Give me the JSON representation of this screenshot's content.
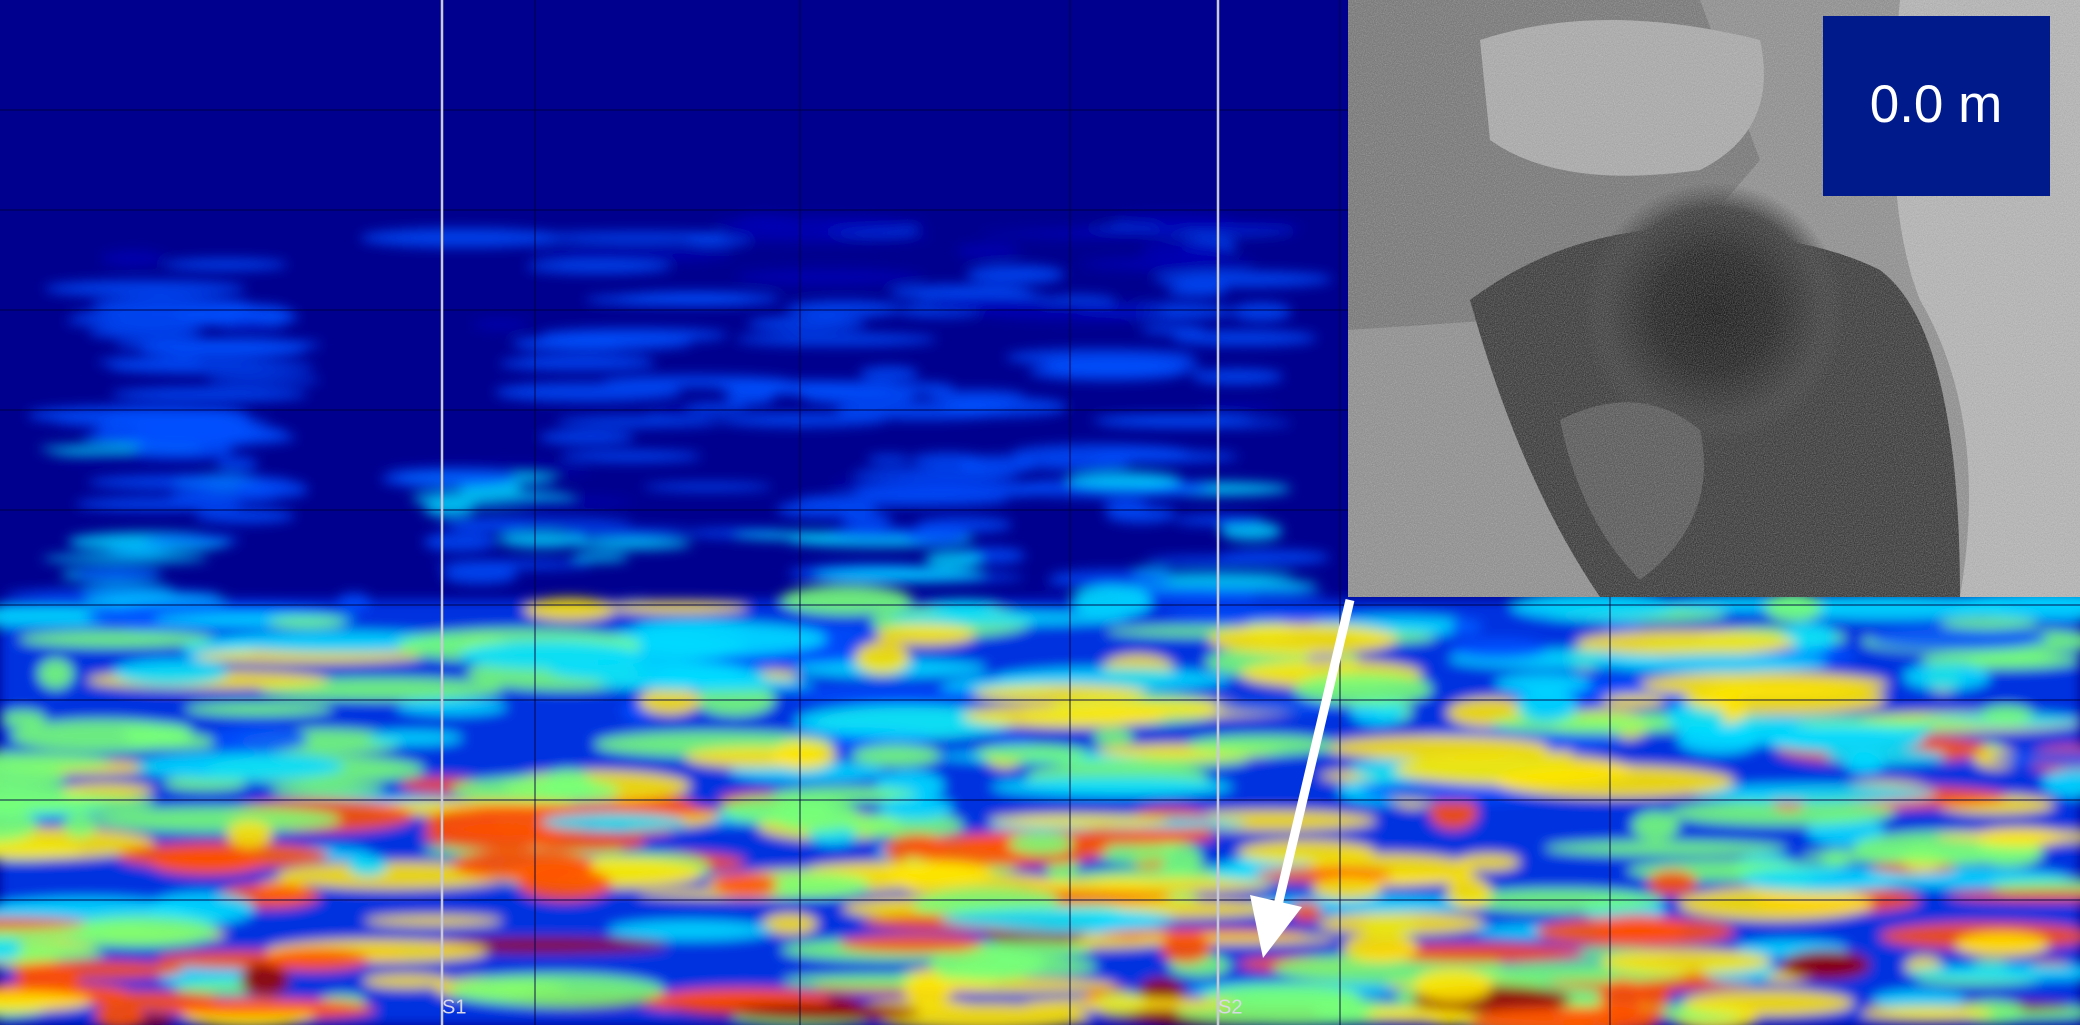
{
  "depth_label": "0.0 m",
  "markers": [
    "S1",
    "S2"
  ]
}
